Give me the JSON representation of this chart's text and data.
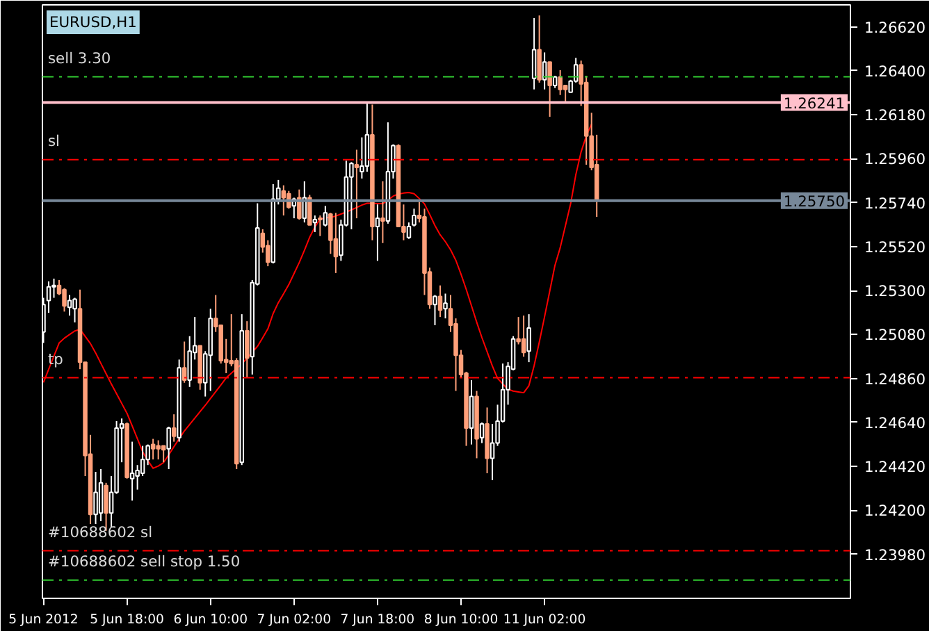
{
  "chart_data": {
    "type": "candlestick",
    "title": "EURUSD,H1",
    "categories": [
      "5 Jun 2012",
      null,
      null,
      null,
      null,
      null,
      null,
      null,
      null,
      null,
      null,
      null,
      null,
      null,
      null,
      null,
      "5 Jun 18:00",
      null,
      null,
      null,
      null,
      null,
      null,
      null,
      null,
      null,
      null,
      null,
      null,
      null,
      null,
      null,
      "6 Jun 10:00",
      null,
      null,
      null,
      null,
      null,
      null,
      null,
      null,
      null,
      null,
      null,
      null,
      null,
      null,
      null,
      "7 Jun 02:00",
      null,
      null,
      null,
      null,
      null,
      null,
      null,
      null,
      null,
      null,
      null,
      null,
      null,
      null,
      null,
      "7 Jun 18:00",
      null,
      null,
      null,
      null,
      null,
      null,
      null,
      null,
      null,
      null,
      null,
      null,
      null,
      null,
      null,
      "8 Jun 10:00",
      null,
      null,
      null,
      null,
      null,
      null,
      null,
      null,
      null,
      null,
      null,
      null,
      null,
      null,
      null,
      "11 Jun 02:00",
      null,
      null,
      null,
      null,
      null,
      null,
      null,
      null,
      null,
      null
    ],
    "ohlc": [
      [
        1.25093,
        1.25264,
        1.25038,
        1.2523
      ],
      [
        1.2525,
        1.25346,
        1.25189,
        1.25319
      ],
      [
        1.25319,
        1.2536,
        1.25264,
        1.25326
      ],
      [
        1.25326,
        1.25353,
        1.25278,
        1.25285
      ],
      [
        1.25305,
        1.25312,
        1.25195,
        1.25223
      ],
      [
        1.25216,
        1.25278,
        1.25175,
        1.2525
      ],
      [
        1.25209,
        1.25264,
        1.25141,
        1.25257
      ],
      [
        1.25209,
        1.25305,
        1.24907,
        1.24942
      ],
      [
        1.24942,
        1.24942,
        1.24372,
        1.24475
      ],
      [
        1.24482,
        1.24578,
        1.24132,
        1.2418
      ],
      [
        1.2418,
        1.24393,
        1.24132,
        1.2429
      ],
      [
        1.24187,
        1.24407,
        1.24146,
        1.24338
      ],
      [
        1.24324,
        1.24338,
        1.24098,
        1.24187
      ],
      [
        1.24187,
        1.24372,
        1.24118,
        1.2429
      ],
      [
        1.2429,
        1.24647,
        1.24283,
        1.24612
      ],
      [
        1.24612,
        1.2466,
        1.24441,
        1.24633
      ],
      [
        1.24633,
        1.2464,
        1.24359,
        1.24365
      ],
      [
        1.24359,
        1.24544,
        1.24249,
        1.24386
      ],
      [
        1.24372,
        1.24427,
        1.24304,
        1.244
      ],
      [
        1.24386,
        1.24523,
        1.24372,
        1.24455
      ],
      [
        1.24455,
        1.2453,
        1.24427,
        1.24523
      ],
      [
        1.2453,
        1.24558,
        1.24455,
        1.24509
      ],
      [
        1.24523,
        1.24551,
        1.24455,
        1.24509
      ],
      [
        1.24523,
        1.24523,
        1.24441,
        1.24503
      ],
      [
        1.24509,
        1.24619,
        1.24407,
        1.24612
      ],
      [
        1.24612,
        1.24681,
        1.24544,
        1.24571
      ],
      [
        1.24564,
        1.24955,
        1.24544,
        1.24914
      ],
      [
        1.24914,
        1.25045,
        1.24839,
        1.24852
      ],
      [
        1.24852,
        1.25072,
        1.24818,
        1.24997
      ],
      [
        1.2499,
        1.25168,
        1.24955,
        1.25024
      ],
      [
        1.25024,
        1.25024,
        1.24804,
        1.24839
      ],
      [
        1.24839,
        1.24997,
        1.2477,
        1.24983
      ],
      [
        1.24976,
        1.25209,
        1.24798,
        1.25161
      ],
      [
        1.25161,
        1.25278,
        1.25093,
        1.2512
      ],
      [
        1.25127,
        1.25127,
        1.24935,
        1.24949
      ],
      [
        1.24955,
        1.25058,
        1.24887,
        1.24942
      ],
      [
        1.24949,
        1.25182,
        1.24921,
        1.24935
      ],
      [
        1.24949,
        1.24962,
        1.24407,
        1.24434
      ],
      [
        1.24441,
        1.25182,
        1.24427,
        1.25099
      ],
      [
        1.25099,
        1.25147,
        1.24866,
        1.24962
      ],
      [
        1.24969,
        1.25353,
        1.2488,
        1.2534
      ],
      [
        1.25333,
        1.25737,
        1.25326,
        1.25614
      ],
      [
        1.25587,
        1.25607,
        1.2549,
        1.25518
      ],
      [
        1.25525,
        1.25552,
        1.25422,
        1.25442
      ],
      [
        1.25442,
        1.25833,
        1.25436,
        1.25758
      ],
      [
        1.25758,
        1.25854,
        1.25731,
        1.25813
      ],
      [
        1.25799,
        1.25827,
        1.25676,
        1.25765
      ],
      [
        1.25785,
        1.25799,
        1.2571,
        1.25717
      ],
      [
        1.25724,
        1.25765,
        1.25662,
        1.25758
      ],
      [
        1.25765,
        1.25806,
        1.25655,
        1.25662
      ],
      [
        1.25662,
        1.25847,
        1.25641,
        1.25765
      ],
      [
        1.25765,
        1.25779,
        1.25628,
        1.25628
      ],
      [
        1.25641,
        1.25676,
        1.25593,
        1.25655
      ],
      [
        1.25662,
        1.25676,
        1.25573,
        1.25655
      ],
      [
        1.25628,
        1.25724,
        1.25621,
        1.25689
      ],
      [
        1.25683,
        1.25689,
        1.25484,
        1.25552
      ],
      [
        1.25559,
        1.25689,
        1.25388,
        1.2547
      ],
      [
        1.25477,
        1.25655,
        1.25449,
        1.25628
      ],
      [
        1.25628,
        1.2595,
        1.25621,
        1.25868
      ],
      [
        1.25868,
        1.25943,
        1.25607,
        1.25936
      ],
      [
        1.2593,
        1.26005,
        1.25662,
        1.25916
      ],
      [
        1.25895,
        1.26067,
        1.25861,
        1.25923
      ],
      [
        1.25923,
        1.26238,
        1.25895,
        1.2608
      ],
      [
        1.2608,
        1.26231,
        1.25552,
        1.25621
      ],
      [
        1.25621,
        1.25731,
        1.25449,
        1.25662
      ],
      [
        1.25662,
        1.25847,
        1.25538,
        1.25648
      ],
      [
        1.25648,
        1.26142,
        1.25635,
        1.25895
      ],
      [
        1.25895,
        1.26032,
        1.25861,
        1.26026
      ],
      [
        1.26026,
        1.26032,
        1.25621,
        1.25621
      ],
      [
        1.25621,
        1.25731,
        1.25552,
        1.25593
      ],
      [
        1.25566,
        1.25641,
        1.25559,
        1.25621
      ],
      [
        1.25628,
        1.2571,
        1.25621,
        1.25676
      ],
      [
        1.25676,
        1.25744,
        1.25641,
        1.25662
      ],
      [
        1.25669,
        1.2571,
        1.25278,
        1.25388
      ],
      [
        1.25394,
        1.25415,
        1.25209,
        1.2523
      ],
      [
        1.2523,
        1.25278,
        1.25127,
        1.25271
      ],
      [
        1.25271,
        1.25326,
        1.25168,
        1.25202
      ],
      [
        1.25209,
        1.25285,
        1.25161,
        1.25237
      ],
      [
        1.25209,
        1.25278,
        1.25093,
        1.25127
      ],
      [
        1.25134,
        1.25161,
        1.24798,
        1.24976
      ],
      [
        1.24976,
        1.25003,
        1.24866,
        1.2488
      ],
      [
        1.24887,
        1.24894,
        1.24523,
        1.24612
      ],
      [
        1.24612,
        1.24852,
        1.2453,
        1.2477
      ],
      [
        1.2477,
        1.24798,
        1.24461,
        1.24558
      ],
      [
        1.24564,
        1.2464,
        1.24537,
        1.24633
      ],
      [
        1.24633,
        1.24715,
        1.24386,
        1.24461
      ],
      [
        1.24461,
        1.24633,
        1.24352,
        1.24537
      ],
      [
        1.24537,
        1.24729,
        1.24523,
        1.24647
      ],
      [
        1.24647,
        1.24935,
        1.2464,
        1.24804
      ],
      [
        1.24804,
        1.24942,
        1.24729,
        1.24921
      ],
      [
        1.24907,
        1.25072,
        1.24901,
        1.25058
      ],
      [
        1.25058,
        1.25168,
        1.25031,
        1.25045
      ],
      [
        1.25058,
        1.25175,
        1.24969,
        1.2499
      ],
      [
        1.24997,
        1.25182,
        1.24942,
        1.25113
      ],
      [
        1.26362,
        1.26664,
        1.26307,
        1.26506
      ],
      [
        1.26506,
        1.26677,
        1.26341,
        1.26355
      ],
      [
        1.26355,
        1.26492,
        1.26307,
        1.26444
      ],
      [
        1.26444,
        1.26444,
        1.2617,
        1.26327
      ],
      [
        1.26327,
        1.26375,
        1.26314,
        1.26369
      ],
      [
        1.26369,
        1.26403,
        1.26279,
        1.26307
      ],
      [
        1.26327,
        1.26327,
        1.26238,
        1.26307
      ],
      [
        1.26293,
        1.26355,
        1.26293,
        1.26348
      ],
      [
        1.26348,
        1.26465,
        1.26341,
        1.2643
      ],
      [
        1.2643,
        1.26451,
        1.26224,
        1.26334
      ],
      [
        1.26341,
        1.26375,
        1.2593,
        1.26074
      ],
      [
        1.26074,
        1.2619,
        1.25902,
        1.25916
      ],
      [
        1.2593,
        1.2608,
        1.25669,
        1.2575
      ]
    ],
    "colors": [
      "#ffffff",
      "#ffffff",
      "#ffffff",
      "#ffa07a",
      "#ffa07a",
      "#ffffff",
      "#ffffff",
      "#ffa07a",
      "#ffa07a",
      "#ffa07a",
      "#ffffff",
      "#ffffff",
      "#ffa07a",
      "#ffffff",
      "#ffffff",
      "#ffffff",
      "#ffa07a",
      "#ffffff",
      "#ffffff",
      "#ffffff",
      "#ffffff",
      "#ffa07a",
      "#ffa07a",
      "#ffa07a",
      "#ffffff",
      "#ffa07a",
      "#ffffff",
      "#ffa07a",
      "#ffffff",
      "#ffffff",
      "#ffa07a",
      "#ffffff",
      "#ffffff",
      "#ffa07a",
      "#ffa07a",
      "#ffa07a",
      "#ffa07a",
      "#ffa07a",
      "#ffffff",
      "#ffa07a",
      "#ffffff",
      "#ffffff",
      "#ffa07a",
      "#ffa07a",
      "#ffffff",
      "#ffffff",
      "#ffa07a",
      "#ffa07a",
      "#ffffff",
      "#ffa07a",
      "#ffffff",
      "#ffa07a",
      "#ffffff",
      "#ffa07a",
      "#ffffff",
      "#ffa07a",
      "#ffa07a",
      "#ffffff",
      "#ffffff",
      "#ffffff",
      "#ffa07a",
      "#ffffff",
      "#ffffff",
      "#ffa07a",
      "#ffffff",
      "#ffa07a",
      "#ffffff",
      "#ffffff",
      "#ffa07a",
      "#ffa07a",
      "#ffffff",
      "#ffffff",
      "#ffa07a",
      "#ffa07a",
      "#ffa07a",
      "#ffffff",
      "#ffa07a",
      "#ffffff",
      "#ffa07a",
      "#ffa07a",
      "#ffa07a",
      "#ffa07a",
      "#ffffff",
      "#ffa07a",
      "#ffffff",
      "#ffa07a",
      "#ffffff",
      "#ffffff",
      "#ffffff",
      "#ffffff",
      "#ffffff",
      "#ffa07a",
      "#ffa07a",
      "#ffffff",
      "#ffffff",
      "#ffa07a",
      "#ffffff",
      "#ffa07a",
      "#ffffff",
      "#ffa07a",
      "#ffa07a",
      "#ffffff",
      "#ffffff",
      "#ffa07a",
      "#ffa07a",
      "#ffa07a",
      "#ffa07a"
    ],
    "series": [
      {
        "type": "line",
        "color": "#ff0000",
        "values": [
          1.2484,
          1.24906,
          1.24972,
          1.25038,
          1.25062,
          1.2508,
          1.25098,
          1.25106,
          1.25071,
          1.25035,
          1.24988,
          1.24936,
          1.24884,
          1.24833,
          1.24784,
          1.24735,
          1.24686,
          1.24623,
          1.24559,
          1.24494,
          1.24449,
          1.24411,
          1.24422,
          1.24439,
          1.24478,
          1.24519,
          1.24559,
          1.24598,
          1.2463,
          1.24662,
          1.24694,
          1.24726,
          1.2476,
          1.24794,
          1.24828,
          1.24863,
          1.24887,
          1.2491,
          1.24933,
          1.24962,
          1.24991,
          1.25021,
          1.25064,
          1.25109,
          1.25185,
          1.2524,
          1.25284,
          1.2533,
          1.25385,
          1.2544,
          1.25502,
          1.25567,
          1.25618,
          1.25658,
          1.25664,
          1.25667,
          1.25673,
          1.25683,
          1.25693,
          1.25704,
          1.25716,
          1.25728,
          1.25737,
          1.25737,
          1.25735,
          1.25735,
          1.25753,
          1.25773,
          1.25783,
          1.25788,
          1.25791,
          1.25785,
          1.25761,
          1.25734,
          1.25681,
          1.25626,
          1.25579,
          1.25545,
          1.25504,
          1.25452,
          1.25382,
          1.25306,
          1.25224,
          1.25142,
          1.25065,
          1.24994,
          1.24923,
          1.24861,
          1.24833,
          1.24806,
          1.24797,
          1.24793,
          1.24789,
          1.24824,
          1.24924,
          1.25043,
          1.25169,
          1.25298,
          1.25427,
          1.25515,
          1.25625,
          1.25735,
          1.25881,
          1.25994,
          1.26074,
          1.26133,
          null
        ]
      }
    ],
    "ylim": [
      1.2376,
      1.2673
    ],
    "yticks": [
      {
        "value": 1.2662,
        "label": "1.26620"
      },
      {
        "value": 1.264,
        "label": "1.26400"
      },
      {
        "value": 1.2618,
        "label": "1.26180"
      },
      {
        "value": 1.2596,
        "label": "1.25960"
      },
      {
        "value": 1.2574,
        "label": "1.25740"
      },
      {
        "value": 1.2552,
        "label": "1.25520"
      },
      {
        "value": 1.253,
        "label": "1.25300"
      },
      {
        "value": 1.2508,
        "label": "1.25080"
      },
      {
        "value": 1.2486,
        "label": "1.24860"
      },
      {
        "value": 1.2464,
        "label": "1.24640"
      },
      {
        "value": 1.2442,
        "label": "1.24420"
      },
      {
        "value": 1.242,
        "label": "1.24200"
      },
      {
        "value": 1.2398,
        "label": "1.23980"
      }
    ],
    "ref_lines": [
      {
        "axis": "y",
        "value": 1.2637,
        "label": "sell 3.30",
        "color": "#32cd32",
        "line_style": "dashdot"
      },
      {
        "axis": "y",
        "value": 1.26241,
        "label": "1.26241",
        "color": "#ffc0cb",
        "line_style": "solid"
      },
      {
        "axis": "y",
        "value": 1.25955,
        "label": "sl",
        "color": "#ff0000",
        "line_style": "dashdot"
      },
      {
        "axis": "y",
        "value": 1.2575,
        "label": "1.25750",
        "color": "#778899",
        "line_style": "solid"
      },
      {
        "axis": "y",
        "value": 1.24864,
        "label": "tp",
        "color": "#ff0000",
        "line_style": "dashdot"
      },
      {
        "axis": "y",
        "value": 1.23998,
        "label": "#10688602 sl",
        "color": "#ff0000",
        "line_style": "dashdot"
      },
      {
        "axis": "y",
        "value": 1.23851,
        "label": "#10688602 sell stop 1.50",
        "color": "#32cd32",
        "line_style": "dashdot"
      }
    ],
    "grid": false
  }
}
